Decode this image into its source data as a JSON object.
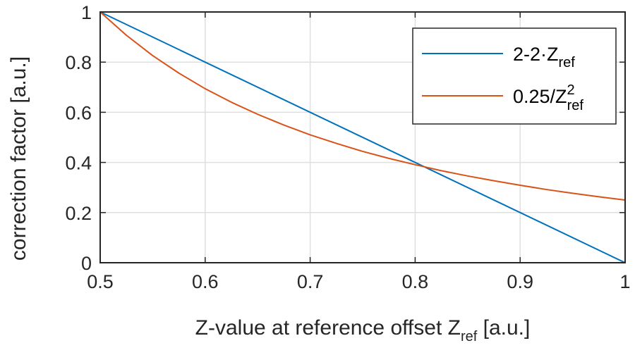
{
  "chart_data": {
    "type": "line",
    "xlabel": {
      "main": "Z-value at reference offset Z",
      "sub": "ref",
      "tail": " [a.u.]"
    },
    "ylabel": "correction factor [a.u.]",
    "xlim": [
      0.5,
      1
    ],
    "ylim": [
      0,
      1
    ],
    "xticks": [
      0.5,
      0.6,
      0.7,
      0.8,
      0.9,
      1
    ],
    "xtick_labels": [
      "0.5",
      "0.6",
      "0.7",
      "0.8",
      "0.9",
      "1"
    ],
    "yticks": [
      0,
      0.2,
      0.4,
      0.6,
      0.8,
      1
    ],
    "ytick_labels": [
      "0",
      "0.2",
      "0.4",
      "0.6",
      "0.8",
      "1"
    ],
    "grid": true,
    "legend_position": "top-right",
    "series": [
      {
        "name": {
          "main": "2-2·Z",
          "sub": "ref",
          "sup": ""
        },
        "color": "#0072BD",
        "x": [
          0.5,
          1.0
        ],
        "y": [
          1.0,
          0.0
        ]
      },
      {
        "name": {
          "main": "0.25/Z",
          "sub": "ref",
          "sup": "2"
        },
        "color": "#D95319",
        "x": [
          0.5,
          0.525,
          0.55,
          0.575,
          0.6,
          0.625,
          0.65,
          0.675,
          0.7,
          0.725,
          0.75,
          0.775,
          0.8,
          0.825,
          0.85,
          0.875,
          0.9,
          0.925,
          0.95,
          0.975,
          1.0
        ],
        "y": [
          1.0,
          0.907,
          0.826,
          0.756,
          0.694,
          0.64,
          0.592,
          0.549,
          0.51,
          0.476,
          0.444,
          0.416,
          0.391,
          0.367,
          0.346,
          0.327,
          0.309,
          0.292,
          0.277,
          0.263,
          0.25
        ]
      }
    ]
  }
}
